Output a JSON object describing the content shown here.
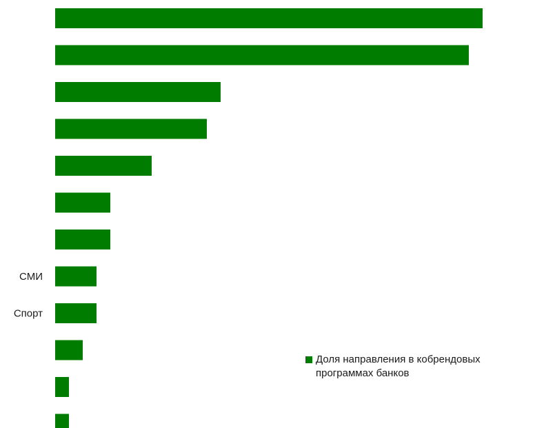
{
  "chart_data": {
    "type": "bar",
    "orientation": "horizontal",
    "categories": [
      "",
      "",
      "",
      "",
      "",
      "",
      "",
      "СМИ",
      "Спорт",
      "",
      "",
      ""
    ],
    "series": [
      {
        "name": "Доля направления в кобрендовых программах банков",
        "values": [
          31,
          30,
          12,
          11,
          7,
          4,
          4,
          3,
          3,
          2,
          1,
          1
        ],
        "color": "#007c00"
      }
    ],
    "xlim": [
      0,
      35
    ],
    "grid": false,
    "legend_position": "bottom-right"
  }
}
